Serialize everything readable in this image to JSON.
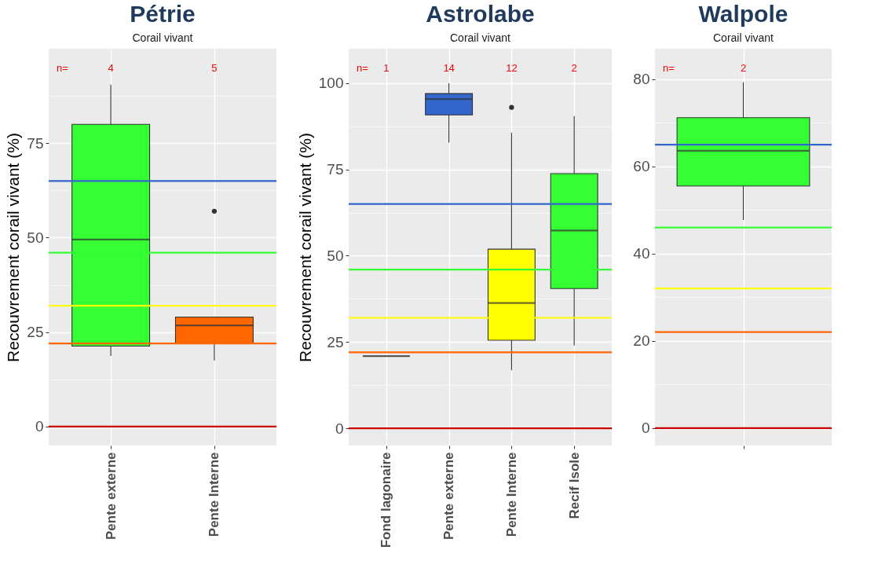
{
  "chart_data": [
    {
      "type": "box",
      "title": "Pétrie",
      "subtitle": "Corail vivant",
      "ylabel": "Recouvrement corail vivant (%)",
      "categories": [
        "Pente externe",
        "Pente Interne"
      ],
      "boxes": [
        {
          "low": 18.7,
          "q1": 21.3,
          "median": 49.5,
          "q3": 80,
          "high": 90.5
        },
        {
          "low": 17.5,
          "q1": 22,
          "median": 26.8,
          "q3": 29,
          "high": 29,
          "outliers": [
            57
          ]
        }
      ],
      "colors": [
        "#33ff33",
        "#ff6600"
      ],
      "ylim": [
        -5,
        100
      ],
      "yticks": [
        0,
        {
          "value": 12.5,
          "label": null
        },
        25,
        {
          "value": 37.5,
          "label": null
        },
        50,
        {
          "value": 62.5,
          "label": null
        },
        75,
        {
          "value": 87.5,
          "label": null
        }
      ],
      "ref_lines": [
        {
          "axis": "y",
          "value": 65,
          "color": "#3366cc"
        },
        {
          "axis": "y",
          "value": 46,
          "color": "#33ff33"
        },
        {
          "axis": "y",
          "value": 32,
          "color": "#ffff00"
        },
        {
          "axis": "y",
          "value": 22,
          "color": "#ff6600"
        },
        {
          "axis": "y",
          "value": 0,
          "color": "#cc0000"
        }
      ],
      "annotations": [
        "n=",
        "4",
        "5"
      ],
      "grid": true
    },
    {
      "type": "box",
      "title": "Astrolabe",
      "subtitle": "Corail vivant",
      "ylabel": "Recouvrement corail vivant (%)",
      "categories": [
        "Fond lagonaire",
        "Pente externe",
        "Pente Interne",
        "Recif Isole"
      ],
      "boxes": [
        {
          "low": 20.9,
          "q1": 20.9,
          "median": 20.9,
          "q3": 20.9,
          "high": 20.9
        },
        {
          "low": 82.8,
          "q1": 90.8,
          "median": 95.4,
          "q3": 97,
          "high": 100
        },
        {
          "low": 16.8,
          "q1": 25.5,
          "median": 36.3,
          "q3": 51.9,
          "high": 85.7,
          "outliers": [
            93
          ]
        },
        {
          "low": 24,
          "q1": 40.5,
          "median": 57.3,
          "q3": 73.8,
          "high": 90.5
        }
      ],
      "colors": [
        "#333333",
        "#3366cc",
        "#ffff00",
        "#33ff33"
      ],
      "ylim": [
        -5,
        110
      ],
      "yticks": [
        0,
        {
          "value": 12.5,
          "label": null
        },
        25,
        {
          "value": 37.5,
          "label": null
        },
        50,
        {
          "value": 62.5,
          "label": null
        },
        75,
        {
          "value": 87.5,
          "label": null
        },
        100
      ],
      "ref_lines": [
        {
          "axis": "y",
          "value": 65,
          "color": "#3366cc"
        },
        {
          "axis": "y",
          "value": 46,
          "color": "#33ff33"
        },
        {
          "axis": "y",
          "value": 32,
          "color": "#ffff00"
        },
        {
          "axis": "y",
          "value": 22,
          "color": "#ff6600"
        },
        {
          "axis": "y",
          "value": 0,
          "color": "#cc0000"
        }
      ],
      "annotations": [
        "n=",
        "1",
        "14",
        "12",
        "2"
      ],
      "grid": true
    },
    {
      "type": "box",
      "title": "Walpole",
      "subtitle": "Corail vivant",
      "categories": [
        null
      ],
      "boxes": [
        {
          "low": 47.7,
          "q1": 55.5,
          "median": 63.6,
          "q3": 71.2,
          "high": 79.3
        }
      ],
      "colors": [
        "#33ff33"
      ],
      "ylim": [
        -4,
        87
      ],
      "yticks": [
        0,
        {
          "value": 10,
          "label": null
        },
        20,
        {
          "value": 30,
          "label": null
        },
        40,
        {
          "value": 50,
          "label": null
        },
        60,
        {
          "value": 70,
          "label": null
        },
        80
      ],
      "ref_lines": [
        {
          "axis": "y",
          "value": 65,
          "color": "#3366cc"
        },
        {
          "axis": "y",
          "value": 46,
          "color": "#33ff33"
        },
        {
          "axis": "y",
          "value": 32,
          "color": "#ffff00"
        },
        {
          "axis": "y",
          "value": 22,
          "color": "#ff6600"
        },
        {
          "axis": "y",
          "value": 0,
          "color": "#cc0000"
        }
      ],
      "annotations": [
        "n=",
        "2"
      ],
      "grid": true
    }
  ]
}
